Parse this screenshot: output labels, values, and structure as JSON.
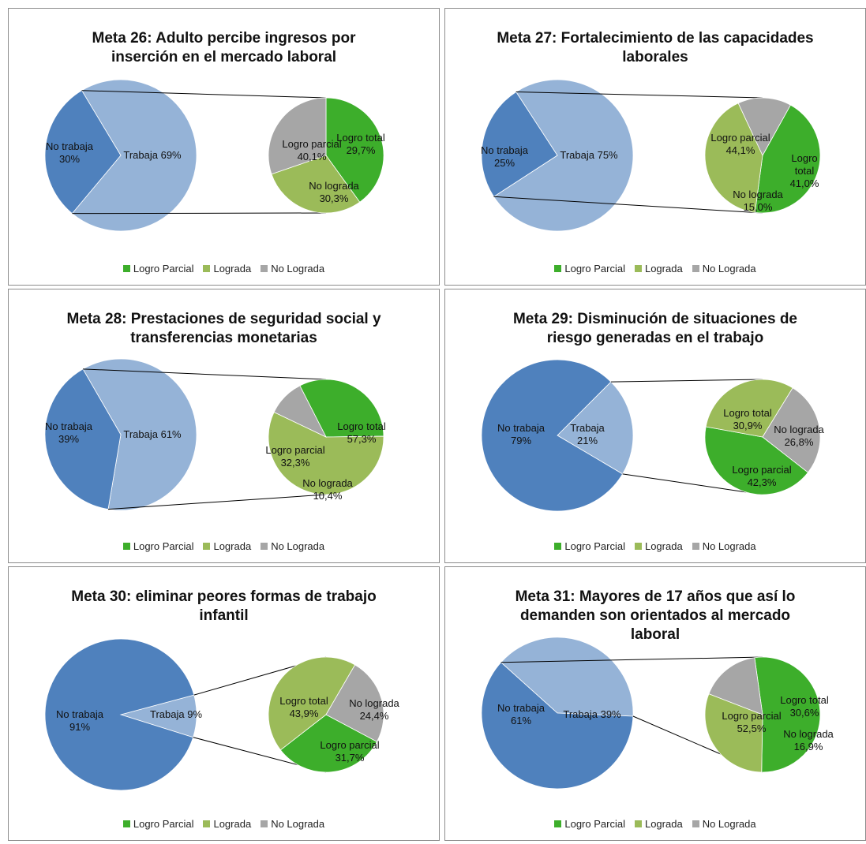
{
  "colors": {
    "no_trabaja": "#4f81bd",
    "trabaja": "#95b3d7",
    "logro_parcial": "#3dae2b",
    "logrado": "#9bbb59",
    "no_lograda": "#a6a6a6",
    "connector": "#000000",
    "border": "#8c8c8c"
  },
  "legend": {
    "logro_parcial": "Logro Parcial",
    "lograda": "Lograda",
    "no_lograda": "No Lograda"
  },
  "chart_data": [
    {
      "type": "pie",
      "title": "Meta 26: Adulto percibe ingresos por\ninserción en el mercado laboral",
      "main_slices": [
        {
          "key": "trabaja",
          "label": "Trabaja 69%",
          "value": 69
        },
        {
          "key": "no_trabaja",
          "label": "No trabaja\n30%",
          "value": 30
        }
      ],
      "breakdown_of": "Trabaja",
      "breakdown_slices": [
        {
          "key": "logro_parcial",
          "label": "Logro parcial\n40,1%",
          "value": 40.1
        },
        {
          "key": "logrado",
          "label": "Logro total\n29,7%",
          "value": 29.7
        },
        {
          "key": "no_lograda",
          "label": "No lograda\n30,3%",
          "value": 30.3
        }
      ]
    },
    {
      "type": "pie",
      "title": "Meta 27: Fortalecimiento de las capacidades\nlaborales",
      "main_slices": [
        {
          "key": "trabaja",
          "label": "Trabaja 75%",
          "value": 75
        },
        {
          "key": "no_trabaja",
          "label": "No trabaja\n25%",
          "value": 25
        }
      ],
      "breakdown_of": "Trabaja",
      "breakdown_slices": [
        {
          "key": "logro_parcial",
          "label": "Logro parcial\n44,1%",
          "value": 44.1
        },
        {
          "key": "logrado",
          "label": "Logro\ntotal\n41,0%",
          "value": 41.0
        },
        {
          "key": "no_lograda",
          "label": "No lograda\n15,0%",
          "value": 15.0
        }
      ]
    },
    {
      "type": "pie",
      "title": "Meta 28: Prestaciones de seguridad social y\ntransferencias monetarias",
      "main_slices": [
        {
          "key": "trabaja",
          "label": "Trabaja 61%",
          "value": 61
        },
        {
          "key": "no_trabaja",
          "label": "No trabaja\n39%",
          "value": 39
        }
      ],
      "breakdown_of": "Trabaja",
      "breakdown_slices": [
        {
          "key": "logro_parcial",
          "label": "Logro parcial\n32,3%",
          "value": 32.3
        },
        {
          "key": "logrado",
          "label": "Logro total\n57,3%",
          "value": 57.3
        },
        {
          "key": "no_lograda",
          "label": "No lograda\n10,4%",
          "value": 10.4
        }
      ]
    },
    {
      "type": "pie",
      "title": "Meta 29: Disminución de situaciones de\nriesgo generadas en el trabajo",
      "main_slices": [
        {
          "key": "trabaja",
          "label": "Trabaja\n21%",
          "value": 21
        },
        {
          "key": "no_trabaja",
          "label": "No trabaja\n79%",
          "value": 79
        }
      ],
      "breakdown_of": "Trabaja",
      "breakdown_slices": [
        {
          "key": "logro_parcial",
          "label": "Logro parcial\n42,3%",
          "value": 42.3
        },
        {
          "key": "logrado",
          "label": "Logro total\n30,9%",
          "value": 30.9
        },
        {
          "key": "no_lograda",
          "label": "No lograda\n26,8%",
          "value": 26.8
        }
      ]
    },
    {
      "type": "pie",
      "title": "Meta 30: eliminar peores formas de trabajo\ninfantil",
      "main_slices": [
        {
          "key": "trabaja",
          "label": "Trabaja 9%",
          "value": 9
        },
        {
          "key": "no_trabaja",
          "label": "No trabaja\n91%",
          "value": 91
        }
      ],
      "breakdown_of": "Trabaja",
      "breakdown_slices": [
        {
          "key": "logro_parcial",
          "label": "Logro parcial\n31,7%",
          "value": 31.7
        },
        {
          "key": "logrado",
          "label": "Logro total\n43,9%",
          "value": 43.9
        },
        {
          "key": "no_lograda",
          "label": "No lograda\n24,4%",
          "value": 24.4
        }
      ]
    },
    {
      "type": "pie",
      "title": "Meta 31: Mayores de 17 años que así lo\ndemanden son orientados al mercado\nlaboral",
      "main_slices": [
        {
          "key": "trabaja",
          "label": "Trabaja 39%",
          "value": 39
        },
        {
          "key": "no_trabaja",
          "label": "No trabaja\n61%",
          "value": 61
        }
      ],
      "breakdown_of": "Trabaja",
      "breakdown_slices": [
        {
          "key": "logro_parcial",
          "label": "Logro parcial\n52,5%",
          "value": 52.5
        },
        {
          "key": "logrado",
          "label": "Logro total\n30,6%",
          "value": 30.6
        },
        {
          "key": "no_lograda",
          "label": "No lograda\n16,9%",
          "value": 16.9
        }
      ]
    }
  ]
}
